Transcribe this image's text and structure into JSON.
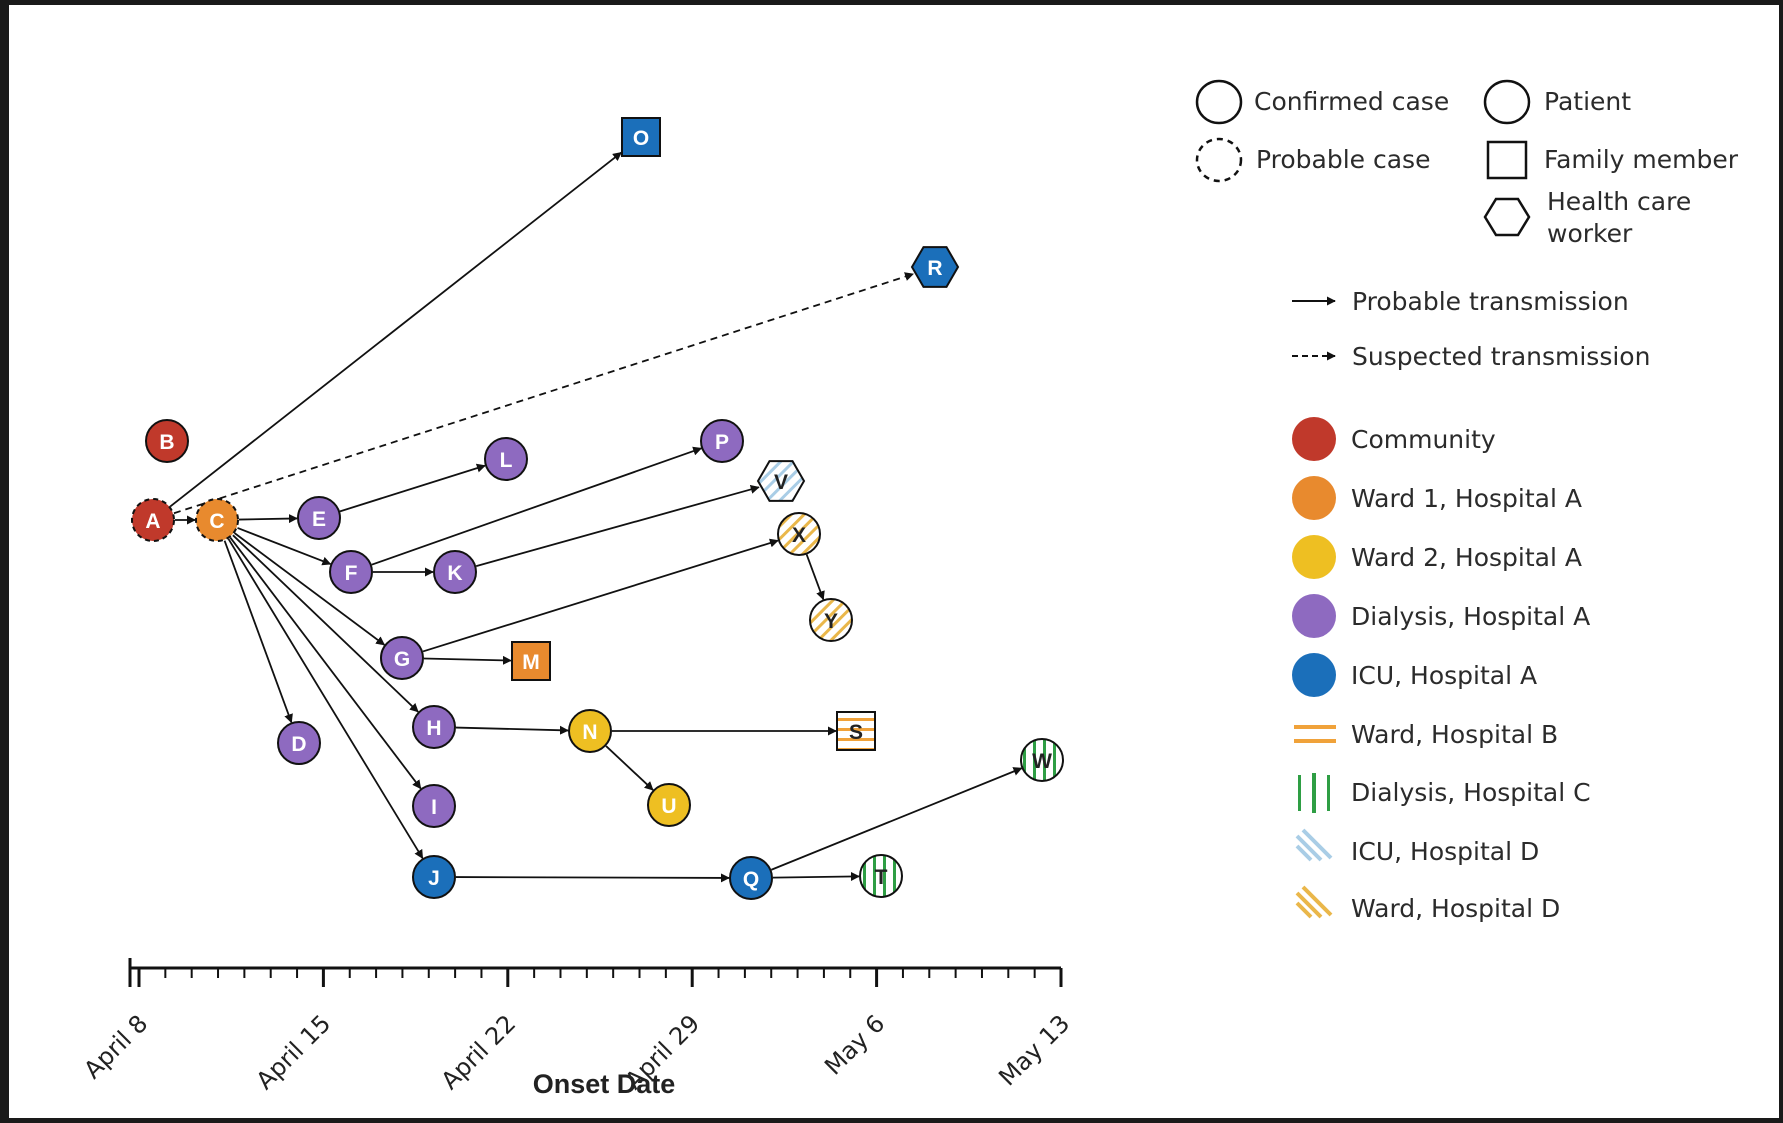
{
  "title": "",
  "axis": {
    "title": "Onset Date",
    "ticks": [
      "April 8",
      "April 15",
      "April 22",
      "April 29",
      "May 6",
      "May 13"
    ]
  },
  "colors": {
    "community": "#c0392b",
    "ward1_hospA": "#e88a2e",
    "ward2_hospA": "#eebf22",
    "dialysis_hospA": "#8e6ac0",
    "icu_hospA": "#1b6fba",
    "ward_hospB": "#f0a23a",
    "dialysis_hospC": "#2e9e44",
    "icu_hospD": "#a9cde6",
    "ward_hospD": "#eab74a"
  },
  "legend": {
    "case_types": [
      {
        "shape": "circle-solid",
        "label": "Confirmed case"
      },
      {
        "shape": "circle-dashed",
        "label": "Probable case"
      }
    ],
    "person_types": [
      {
        "shape": "circle",
        "label": "Patient"
      },
      {
        "shape": "square",
        "label": "Family member"
      },
      {
        "shape": "hexagon",
        "label_line1": "Health care",
        "label_line2": "worker"
      }
    ],
    "transmission": [
      {
        "style": "solid",
        "label": "Probable transmission"
      },
      {
        "style": "dashed",
        "label": "Suspected transmission"
      }
    ],
    "locations": [
      {
        "fill": "community",
        "label": "Community"
      },
      {
        "fill": "ward1_hospA",
        "label": "Ward 1, Hospital A"
      },
      {
        "fill": "ward2_hospA",
        "label": "Ward 2, Hospital A"
      },
      {
        "fill": "dialysis_hospA",
        "label": "Dialysis, Hospital A"
      },
      {
        "fill": "icu_hospA",
        "label": "ICU, Hospital A"
      },
      {
        "fill": "ward_hospB",
        "pattern": "horizontal-stripes",
        "label": "Ward, Hospital B"
      },
      {
        "fill": "dialysis_hospC",
        "pattern": "vertical-stripes",
        "label": "Dialysis, Hospital C"
      },
      {
        "fill": "icu_hospD",
        "pattern": "diagonal-stripes",
        "label": "ICU, Hospital D"
      },
      {
        "fill": "ward_hospD",
        "pattern": "diagonal-stripes",
        "label": "Ward, Hospital D"
      }
    ]
  },
  "cases": [
    {
      "id": "A",
      "onset": "April 9",
      "shape": "circle",
      "location": "community",
      "status": "probable"
    },
    {
      "id": "B",
      "onset": "April 9",
      "shape": "circle",
      "location": "community",
      "status": "confirmed"
    },
    {
      "id": "C",
      "onset": "April 10",
      "shape": "circle",
      "location": "ward1_hospA",
      "status": "probable"
    },
    {
      "id": "D",
      "onset": "April 14",
      "shape": "circle",
      "location": "dialysis_hospA",
      "status": "confirmed"
    },
    {
      "id": "E",
      "onset": "April 15",
      "shape": "circle",
      "location": "dialysis_hospA",
      "status": "confirmed"
    },
    {
      "id": "F",
      "onset": "April 16",
      "shape": "circle",
      "location": "dialysis_hospA",
      "status": "confirmed"
    },
    {
      "id": "G",
      "onset": "April 18",
      "shape": "circle",
      "location": "dialysis_hospA",
      "status": "confirmed"
    },
    {
      "id": "H",
      "onset": "April 19",
      "shape": "circle",
      "location": "dialysis_hospA",
      "status": "confirmed"
    },
    {
      "id": "I",
      "onset": "April 19",
      "shape": "circle",
      "location": "dialysis_hospA",
      "status": "confirmed"
    },
    {
      "id": "J",
      "onset": "April 19",
      "shape": "circle",
      "location": "icu_hospA",
      "status": "confirmed"
    },
    {
      "id": "K",
      "onset": "April 20",
      "shape": "circle",
      "location": "dialysis_hospA",
      "status": "confirmed"
    },
    {
      "id": "L",
      "onset": "April 22",
      "shape": "circle",
      "location": "dialysis_hospA",
      "status": "confirmed"
    },
    {
      "id": "M",
      "onset": "April 22",
      "shape": "square",
      "location": "ward1_hospA",
      "status": "confirmed"
    },
    {
      "id": "N",
      "onset": "April 25",
      "shape": "circle",
      "location": "ward2_hospA",
      "status": "confirmed"
    },
    {
      "id": "O",
      "onset": "April 27",
      "shape": "square",
      "location": "icu_hospA",
      "status": "confirmed"
    },
    {
      "id": "P",
      "onset": "April 30",
      "shape": "circle",
      "location": "dialysis_hospA",
      "status": "confirmed"
    },
    {
      "id": "Q",
      "onset": "May 1",
      "shape": "circle",
      "location": "icu_hospA",
      "status": "confirmed"
    },
    {
      "id": "R",
      "onset": "May 8",
      "shape": "hexagon",
      "location": "icu_hospA",
      "status": "confirmed"
    },
    {
      "id": "S",
      "onset": "May 5",
      "shape": "square",
      "location": "ward_hospB",
      "status": "confirmed"
    },
    {
      "id": "T",
      "onset": "May 6",
      "shape": "circle",
      "location": "dialysis_hospC",
      "status": "confirmed"
    },
    {
      "id": "U",
      "onset": "April 28",
      "shape": "circle",
      "location": "ward2_hospA",
      "status": "confirmed"
    },
    {
      "id": "V",
      "onset": "May 3",
      "shape": "hexagon",
      "location": "icu_hospD",
      "status": "confirmed"
    },
    {
      "id": "W",
      "onset": "May 12",
      "shape": "circle",
      "location": "dialysis_hospC",
      "status": "confirmed"
    },
    {
      "id": "X",
      "onset": "May 3",
      "shape": "circle",
      "location": "ward_hospD",
      "status": "confirmed"
    },
    {
      "id": "Y",
      "onset": "May 4",
      "shape": "circle",
      "location": "ward_hospD",
      "status": "confirmed"
    }
  ],
  "transmissions": [
    {
      "from": "A",
      "to": "C",
      "type": "probable"
    },
    {
      "from": "A",
      "to": "O",
      "type": "probable"
    },
    {
      "from": "A",
      "to": "R",
      "type": "suspected"
    },
    {
      "from": "C",
      "to": "E",
      "type": "probable"
    },
    {
      "from": "C",
      "to": "F",
      "type": "probable"
    },
    {
      "from": "C",
      "to": "G",
      "type": "probable"
    },
    {
      "from": "C",
      "to": "H",
      "type": "probable"
    },
    {
      "from": "C",
      "to": "I",
      "type": "probable"
    },
    {
      "from": "C",
      "to": "J",
      "type": "probable"
    },
    {
      "from": "C",
      "to": "D",
      "type": "probable"
    },
    {
      "from": "E",
      "to": "L",
      "type": "probable"
    },
    {
      "from": "F",
      "to": "K",
      "type": "probable"
    },
    {
      "from": "F",
      "to": "P",
      "type": "probable"
    },
    {
      "from": "K",
      "to": "V",
      "type": "probable"
    },
    {
      "from": "G",
      "to": "M",
      "type": "probable"
    },
    {
      "from": "G",
      "to": "X",
      "type": "probable"
    },
    {
      "from": "X",
      "to": "Y",
      "type": "probable"
    },
    {
      "from": "H",
      "to": "N",
      "type": "probable"
    },
    {
      "from": "N",
      "to": "S",
      "type": "probable"
    },
    {
      "from": "N",
      "to": "U",
      "type": "probable"
    },
    {
      "from": "J",
      "to": "Q",
      "type": "probable"
    },
    {
      "from": "Q",
      "to": "T",
      "type": "probable"
    },
    {
      "from": "Q",
      "to": "W",
      "type": "probable"
    }
  ]
}
